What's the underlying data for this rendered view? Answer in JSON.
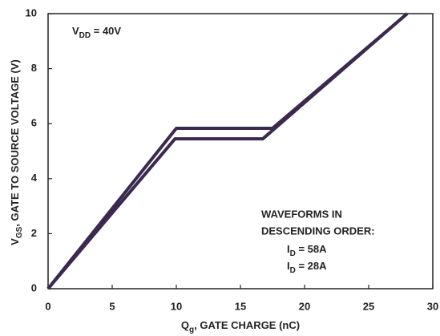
{
  "chart_data": {
    "type": "line",
    "xlabel": {
      "base": "Q",
      "sub": "g",
      "rest": ", GATE CHARGE (nC)"
    },
    "ylabel": {
      "base": "V",
      "sub": "GS",
      "rest": ", GATE TO SOURCE VOLTAGE (V)"
    },
    "xlim": [
      0,
      30
    ],
    "xticks": [
      0,
      5,
      10,
      15,
      20,
      25,
      30
    ],
    "ylim": [
      0,
      10
    ],
    "yticks": [
      0,
      2,
      4,
      6,
      8,
      10
    ],
    "grid": false,
    "series": [
      {
        "name": {
          "base": "I",
          "sub": "D",
          "rest": " = 58A"
        },
        "color": "#3b2a4e",
        "x": [
          0,
          10,
          17.5,
          28
        ],
        "values": [
          0,
          5.83,
          5.83,
          10
        ]
      },
      {
        "name": {
          "base": "I",
          "sub": "D",
          "rest": " = 28A"
        },
        "color": "#3b2a4e",
        "x": [
          0,
          9.9,
          16.75,
          28
        ],
        "values": [
          0,
          5.45,
          5.45,
          10
        ]
      }
    ],
    "annotations": {
      "vdd": {
        "base": "V",
        "sub": "DD",
        "rest": " = 40V"
      },
      "legend_title": [
        "WAVEFORMS IN",
        "DESCENDING ORDER:"
      ]
    }
  }
}
